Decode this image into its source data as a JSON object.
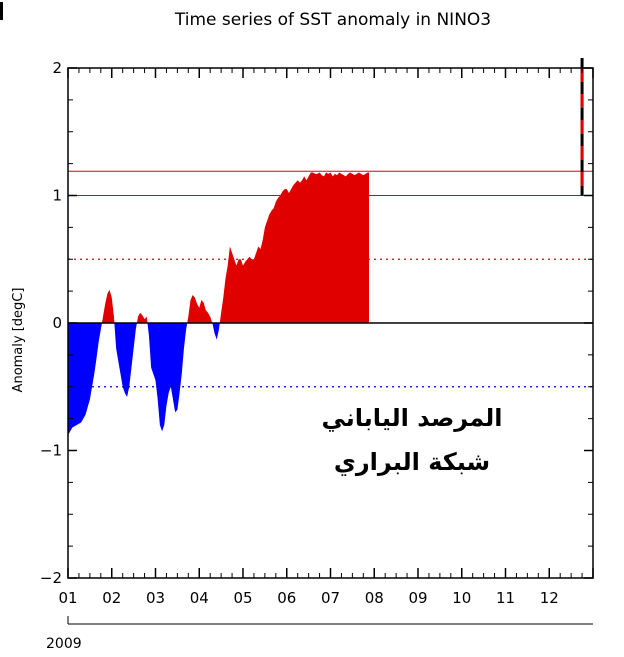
{
  "chart_data": {
    "type": "area",
    "title": "Time series of SST anomaly in NINO3",
    "ylabel": "Anomaly [degC]",
    "xlabel": "",
    "year_label": "2009",
    "ylim": [
      -2,
      2
    ],
    "yticks": [
      2,
      1,
      0,
      -1,
      -2
    ],
    "ytick_labels": [
      "2",
      "1",
      "0",
      "−1",
      "−2"
    ],
    "xlim": [
      0,
      12
    ],
    "xtick_labels": [
      "01",
      "02",
      "03",
      "04",
      "05",
      "06",
      "07",
      "08",
      "09",
      "10",
      "11",
      "12"
    ],
    "reference_lines": [
      {
        "value": 1.0,
        "style": "solid",
        "color": "#e00000"
      },
      {
        "value": 1.19,
        "style": "solid",
        "color": "#e00000"
      },
      {
        "value": 0.5,
        "style": "dotted",
        "color": "#e00000"
      },
      {
        "value": -0.5,
        "style": "dotted",
        "color": "#0000cc"
      }
    ],
    "positive_color": "#e00000",
    "negative_color": "#0000ff",
    "marker": {
      "month": 11.75,
      "range": [
        1.0,
        2.0
      ],
      "style": "dashed red/black"
    },
    "series": [
      {
        "x": [
          0.0,
          0.1,
          0.2,
          0.3,
          0.4,
          0.5,
          0.6,
          0.65,
          0.7,
          0.75,
          0.8,
          0.85,
          0.9,
          0.95,
          1.0,
          1.05,
          1.1,
          1.2,
          1.25,
          1.3,
          1.35,
          1.4,
          1.45,
          1.5,
          1.55,
          1.6,
          1.65,
          1.7,
          1.75,
          1.8,
          1.85,
          1.9,
          2.0,
          2.05,
          2.1,
          2.15,
          2.2,
          2.25,
          2.3,
          2.35,
          2.4,
          2.45,
          2.5,
          2.55,
          2.6,
          2.65,
          2.7,
          2.75,
          2.8,
          2.85,
          2.9,
          2.95,
          3.0,
          3.05,
          3.1,
          3.15,
          3.2,
          3.25,
          3.3,
          3.35,
          3.4,
          3.45,
          3.5,
          3.55,
          3.6,
          3.65,
          3.7,
          3.75,
          3.8,
          3.85,
          3.9,
          3.95,
          4.0,
          4.05,
          4.1,
          4.15,
          4.2,
          4.25,
          4.3,
          4.35,
          4.4,
          4.45,
          4.5,
          4.55,
          4.6,
          4.65,
          4.7,
          4.75,
          4.8,
          4.85,
          4.9,
          4.95,
          5.0,
          5.05,
          5.1,
          5.15,
          5.2,
          5.25,
          5.3,
          5.35,
          5.4,
          5.45,
          5.5,
          5.55,
          5.6,
          5.65,
          5.7,
          5.75,
          5.8,
          5.85,
          5.9,
          5.95,
          6.0,
          6.05,
          6.1,
          6.15,
          6.2,
          6.25,
          6.3,
          6.35,
          6.4,
          6.45,
          6.5,
          6.55,
          6.6,
          6.65,
          6.7,
          6.75,
          6.8,
          6.85,
          6.88
        ],
        "values": [
          -0.88,
          -0.82,
          -0.8,
          -0.78,
          -0.72,
          -0.6,
          -0.4,
          -0.28,
          -0.15,
          -0.05,
          0.05,
          0.15,
          0.23,
          0.26,
          0.2,
          0.05,
          -0.2,
          -0.4,
          -0.5,
          -0.55,
          -0.58,
          -0.5,
          -0.35,
          -0.2,
          -0.05,
          0.05,
          0.08,
          0.06,
          0.03,
          0.05,
          -0.1,
          -0.35,
          -0.45,
          -0.6,
          -0.8,
          -0.85,
          -0.8,
          -0.65,
          -0.55,
          -0.5,
          -0.6,
          -0.7,
          -0.68,
          -0.55,
          -0.4,
          -0.2,
          -0.05,
          0.05,
          0.18,
          0.22,
          0.2,
          0.15,
          0.12,
          0.18,
          0.16,
          0.1,
          0.08,
          0.05,
          0.0,
          -0.08,
          -0.13,
          -0.05,
          0.08,
          0.2,
          0.35,
          0.45,
          0.6,
          0.55,
          0.5,
          0.45,
          0.5,
          0.5,
          0.45,
          0.48,
          0.5,
          0.52,
          0.5,
          0.5,
          0.55,
          0.6,
          0.58,
          0.65,
          0.75,
          0.8,
          0.85,
          0.88,
          0.9,
          0.95,
          0.98,
          1.0,
          1.03,
          1.05,
          1.05,
          1.02,
          1.05,
          1.08,
          1.1,
          1.12,
          1.1,
          1.12,
          1.15,
          1.12,
          1.15,
          1.18,
          1.18,
          1.17,
          1.17,
          1.18,
          1.16,
          1.15,
          1.18,
          1.17,
          1.18,
          1.15,
          1.17,
          1.16,
          1.18,
          1.17,
          1.16,
          1.15,
          1.17,
          1.18,
          1.17,
          1.16,
          1.17,
          1.18,
          1.17,
          1.16,
          1.17,
          1.18,
          1.18
        ]
      }
    ]
  },
  "watermark": {
    "line1": "المرصد الياباني",
    "line2": "شبكة البراري"
  }
}
